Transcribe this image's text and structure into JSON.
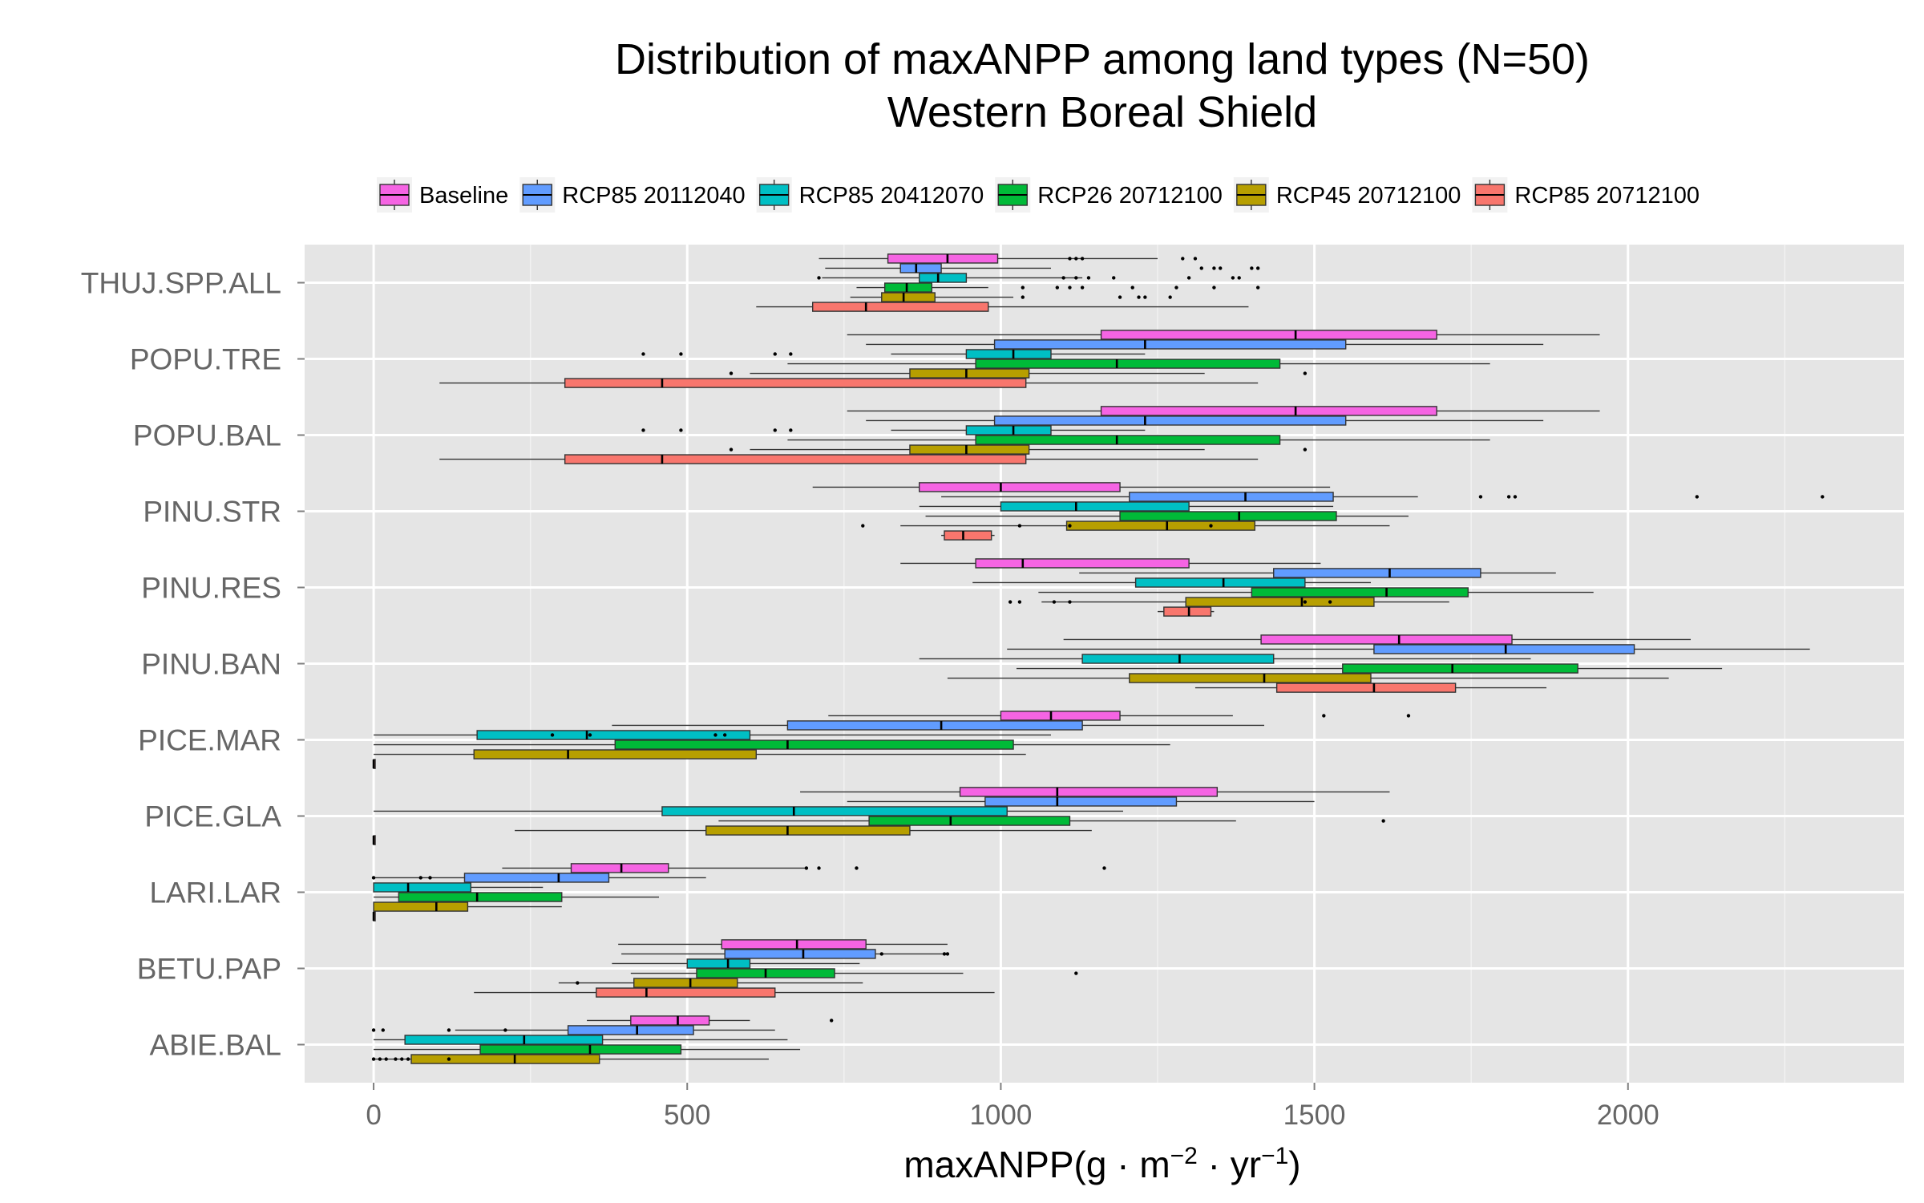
{
  "chart_data": {
    "type": "boxplot",
    "orientation": "horizontal",
    "title": "Distribution of maxANPP among land types (N=50)",
    "subtitle": "Western Boreal Shield",
    "xlabel": "maxANPP(g·m−2·yr−1)",
    "xlabel_parts": {
      "base": "maxANPP(g · m",
      "exp1": "−2",
      "mid": " · yr",
      "exp2": "−1",
      "end": ")"
    },
    "xlim": [
      -110,
      2440
    ],
    "xticks": [
      0,
      500,
      1000,
      1500,
      2000
    ],
    "xtick_labels": [
      "0",
      "500",
      "1000",
      "1500",
      "2000"
    ],
    "grid": true,
    "legend_position": "top",
    "categories": [
      "THUJ.SPP.ALL",
      "POPU.TRE",
      "POPU.BAL",
      "PINU.STR",
      "PINU.RES",
      "PINU.BAN",
      "PICE.MAR",
      "PICE.GLA",
      "LARI.LAR",
      "BETU.PAP",
      "ABIE.BAL"
    ],
    "series": [
      {
        "name": "Baseline",
        "color": "#F564E3"
      },
      {
        "name": "RCP85 20112040",
        "color": "#619CFF"
      },
      {
        "name": "RCP85 20412070",
        "color": "#00BFC4"
      },
      {
        "name": "RCP26 20712100",
        "color": "#00BA38"
      },
      {
        "name": "RCP45 20712100",
        "color": "#B79F00"
      },
      {
        "name": "RCP85 20712100",
        "color": "#F8766D"
      }
    ],
    "boxes": [
      {
        "category": "THUJ.SPP.ALL",
        "series": 0,
        "whisker_low": 710,
        "q1": 820,
        "median": 915,
        "q3": 995,
        "whisker_high": 1250,
        "outliers": [
          1110,
          1120,
          1130,
          1290,
          1310
        ]
      },
      {
        "category": "THUJ.SPP.ALL",
        "series": 1,
        "whisker_low": 720,
        "q1": 840,
        "median": 865,
        "q3": 905,
        "whisker_high": 1080,
        "outliers": [
          1320,
          1340,
          1350,
          1400,
          1410
        ]
      },
      {
        "category": "THUJ.SPP.ALL",
        "series": 2,
        "whisker_low": 715,
        "q1": 870,
        "median": 900,
        "q3": 945,
        "whisker_high": 1130,
        "outliers": [
          710,
          1100,
          1120,
          1140,
          1180,
          1300,
          1370,
          1380
        ]
      },
      {
        "category": "THUJ.SPP.ALL",
        "series": 3,
        "whisker_low": 770,
        "q1": 815,
        "median": 850,
        "q3": 890,
        "whisker_high": 980,
        "outliers": [
          1035,
          1090,
          1110,
          1130,
          1210,
          1280,
          1340,
          1410
        ]
      },
      {
        "category": "THUJ.SPP.ALL",
        "series": 4,
        "whisker_low": 760,
        "q1": 810,
        "median": 845,
        "q3": 895,
        "whisker_high": 1020,
        "outliers": [
          1035,
          1190,
          1220,
          1230,
          1270
        ]
      },
      {
        "category": "THUJ.SPP.ALL",
        "series": 5,
        "whisker_low": 610,
        "q1": 700,
        "median": 785,
        "q3": 980,
        "whisker_high": 1395,
        "outliers": []
      },
      {
        "category": "POPU.TRE",
        "series": 0,
        "whisker_low": 755,
        "q1": 1160,
        "median": 1470,
        "q3": 1695,
        "whisker_high": 1955,
        "outliers": []
      },
      {
        "category": "POPU.TRE",
        "series": 1,
        "whisker_low": 785,
        "q1": 990,
        "median": 1230,
        "q3": 1550,
        "whisker_high": 1865,
        "outliers": []
      },
      {
        "category": "POPU.TRE",
        "series": 2,
        "whisker_low": 825,
        "q1": 945,
        "median": 1020,
        "q3": 1080,
        "whisker_high": 1230,
        "outliers": [
          430,
          490,
          640,
          665
        ]
      },
      {
        "category": "POPU.TRE",
        "series": 3,
        "whisker_low": 660,
        "q1": 960,
        "median": 1185,
        "q3": 1445,
        "whisker_high": 1780,
        "outliers": []
      },
      {
        "category": "POPU.TRE",
        "series": 4,
        "whisker_low": 600,
        "q1": 855,
        "median": 945,
        "q3": 1045,
        "whisker_high": 1325,
        "outliers": [
          570,
          1485
        ]
      },
      {
        "category": "POPU.TRE",
        "series": 5,
        "whisker_low": 105,
        "q1": 305,
        "median": 460,
        "q3": 1040,
        "whisker_high": 1410,
        "outliers": []
      },
      {
        "category": "POPU.BAL",
        "series": 0,
        "whisker_low": 755,
        "q1": 1160,
        "median": 1470,
        "q3": 1695,
        "whisker_high": 1955,
        "outliers": []
      },
      {
        "category": "POPU.BAL",
        "series": 1,
        "whisker_low": 785,
        "q1": 990,
        "median": 1230,
        "q3": 1550,
        "whisker_high": 1865,
        "outliers": []
      },
      {
        "category": "POPU.BAL",
        "series": 2,
        "whisker_low": 825,
        "q1": 945,
        "median": 1020,
        "q3": 1080,
        "whisker_high": 1230,
        "outliers": [
          430,
          490,
          640,
          665
        ]
      },
      {
        "category": "POPU.BAL",
        "series": 3,
        "whisker_low": 660,
        "q1": 960,
        "median": 1185,
        "q3": 1445,
        "whisker_high": 1780,
        "outliers": []
      },
      {
        "category": "POPU.BAL",
        "series": 4,
        "whisker_low": 600,
        "q1": 855,
        "median": 945,
        "q3": 1045,
        "whisker_high": 1325,
        "outliers": [
          570,
          1485
        ]
      },
      {
        "category": "POPU.BAL",
        "series": 5,
        "whisker_low": 105,
        "q1": 305,
        "median": 460,
        "q3": 1040,
        "whisker_high": 1410,
        "outliers": []
      },
      {
        "category": "PINU.STR",
        "series": 0,
        "whisker_low": 700,
        "q1": 870,
        "median": 1000,
        "q3": 1190,
        "whisker_high": 1525,
        "outliers": []
      },
      {
        "category": "PINU.STR",
        "series": 1,
        "whisker_low": 905,
        "q1": 1205,
        "median": 1390,
        "q3": 1530,
        "whisker_high": 1665,
        "outliers": [
          1765,
          1810,
          1820,
          2110,
          2310
        ]
      },
      {
        "category": "PINU.STR",
        "series": 2,
        "whisker_low": 870,
        "q1": 1000,
        "median": 1120,
        "q3": 1300,
        "whisker_high": 1530,
        "outliers": []
      },
      {
        "category": "PINU.STR",
        "series": 3,
        "whisker_low": 880,
        "q1": 1190,
        "median": 1380,
        "q3": 1535,
        "whisker_high": 1650,
        "outliers": []
      },
      {
        "category": "PINU.STR",
        "series": 4,
        "whisker_low": 840,
        "q1": 1105,
        "median": 1265,
        "q3": 1405,
        "whisker_high": 1620,
        "outliers": [
          780,
          1030,
          1110,
          1335
        ]
      },
      {
        "category": "PINU.STR",
        "series": 5,
        "whisker_low": 905,
        "q1": 910,
        "median": 940,
        "q3": 985,
        "whisker_high": 990,
        "outliers": []
      },
      {
        "category": "PINU.RES",
        "series": 0,
        "whisker_low": 840,
        "q1": 960,
        "median": 1035,
        "q3": 1300,
        "whisker_high": 1510,
        "outliers": []
      },
      {
        "category": "PINU.RES",
        "series": 1,
        "whisker_low": 1125,
        "q1": 1435,
        "median": 1620,
        "q3": 1765,
        "whisker_high": 1885,
        "outliers": []
      },
      {
        "category": "PINU.RES",
        "series": 2,
        "whisker_low": 955,
        "q1": 1215,
        "median": 1355,
        "q3": 1485,
        "whisker_high": 1590,
        "outliers": []
      },
      {
        "category": "PINU.RES",
        "series": 3,
        "whisker_low": 1060,
        "q1": 1400,
        "median": 1615,
        "q3": 1745,
        "whisker_high": 1945,
        "outliers": []
      },
      {
        "category": "PINU.RES",
        "series": 4,
        "whisker_low": 1065,
        "q1": 1295,
        "median": 1480,
        "q3": 1595,
        "whisker_high": 1715,
        "outliers": [
          1015,
          1030,
          1085,
          1110,
          1485,
          1525
        ]
      },
      {
        "category": "PINU.RES",
        "series": 5,
        "whisker_low": 1250,
        "q1": 1260,
        "median": 1300,
        "q3": 1335,
        "whisker_high": 1340,
        "outliers": []
      },
      {
        "category": "PINU.BAN",
        "series": 0,
        "whisker_low": 1100,
        "q1": 1415,
        "median": 1635,
        "q3": 1815,
        "whisker_high": 2100,
        "outliers": []
      },
      {
        "category": "PINU.BAN",
        "series": 1,
        "whisker_low": 1010,
        "q1": 1595,
        "median": 1805,
        "q3": 2010,
        "whisker_high": 2290,
        "outliers": []
      },
      {
        "category": "PINU.BAN",
        "series": 2,
        "whisker_low": 870,
        "q1": 1130,
        "median": 1285,
        "q3": 1435,
        "whisker_high": 1845,
        "outliers": []
      },
      {
        "category": "PINU.BAN",
        "series": 3,
        "whisker_low": 1025,
        "q1": 1545,
        "median": 1720,
        "q3": 1920,
        "whisker_high": 2150,
        "outliers": []
      },
      {
        "category": "PINU.BAN",
        "series": 4,
        "whisker_low": 915,
        "q1": 1205,
        "median": 1420,
        "q3": 1590,
        "whisker_high": 2065,
        "outliers": []
      },
      {
        "category": "PINU.BAN",
        "series": 5,
        "whisker_low": 1310,
        "q1": 1440,
        "median": 1595,
        "q3": 1725,
        "whisker_high": 1870,
        "outliers": []
      },
      {
        "category": "PICE.MAR",
        "series": 0,
        "whisker_low": 725,
        "q1": 1000,
        "median": 1080,
        "q3": 1190,
        "whisker_high": 1370,
        "outliers": [
          1515,
          1650
        ]
      },
      {
        "category": "PICE.MAR",
        "series": 1,
        "whisker_low": 380,
        "q1": 660,
        "median": 905,
        "q3": 1130,
        "whisker_high": 1420,
        "outliers": []
      },
      {
        "category": "PICE.MAR",
        "series": 2,
        "whisker_low": 0,
        "q1": 165,
        "median": 340,
        "q3": 600,
        "whisker_high": 1080,
        "outliers": [
          285,
          345,
          545,
          560
        ]
      },
      {
        "category": "PICE.MAR",
        "series": 3,
        "whisker_low": 0,
        "q1": 385,
        "median": 660,
        "q3": 1020,
        "whisker_high": 1270,
        "outliers": []
      },
      {
        "category": "PICE.MAR",
        "series": 4,
        "whisker_low": 0,
        "q1": 160,
        "median": 310,
        "q3": 610,
        "whisker_high": 1040,
        "outliers": []
      },
      {
        "category": "PICE.MAR",
        "series": 5,
        "whisker_low": 0,
        "q1": 0,
        "median": 0,
        "q3": 0,
        "whisker_high": 0,
        "outliers": []
      },
      {
        "category": "PICE.GLA",
        "series": 0,
        "whisker_low": 680,
        "q1": 935,
        "median": 1090,
        "q3": 1345,
        "whisker_high": 1620,
        "outliers": []
      },
      {
        "category": "PICE.GLA",
        "series": 1,
        "whisker_low": 755,
        "q1": 975,
        "median": 1090,
        "q3": 1280,
        "whisker_high": 1500,
        "outliers": []
      },
      {
        "category": "PICE.GLA",
        "series": 2,
        "whisker_low": 0,
        "q1": 460,
        "median": 670,
        "q3": 1010,
        "whisker_high": 1195,
        "outliers": []
      },
      {
        "category": "PICE.GLA",
        "series": 3,
        "whisker_low": 550,
        "q1": 790,
        "median": 920,
        "q3": 1110,
        "whisker_high": 1375,
        "outliers": [
          1610
        ]
      },
      {
        "category": "PICE.GLA",
        "series": 4,
        "whisker_low": 225,
        "q1": 530,
        "median": 660,
        "q3": 855,
        "whisker_high": 1145,
        "outliers": []
      },
      {
        "category": "PICE.GLA",
        "series": 5,
        "whisker_low": 0,
        "q1": 0,
        "median": 0,
        "q3": 0,
        "whisker_high": 0,
        "outliers": []
      },
      {
        "category": "LARI.LAR",
        "series": 0,
        "whisker_low": 205,
        "q1": 315,
        "median": 395,
        "q3": 470,
        "whisker_high": 690,
        "outliers": [
          690,
          710,
          770,
          1165
        ]
      },
      {
        "category": "LARI.LAR",
        "series": 1,
        "whisker_low": 0,
        "q1": 145,
        "median": 295,
        "q3": 375,
        "whisker_high": 530,
        "outliers": [
          0,
          75,
          90
        ]
      },
      {
        "category": "LARI.LAR",
        "series": 2,
        "whisker_low": 0,
        "q1": 0,
        "median": 55,
        "q3": 155,
        "whisker_high": 270,
        "outliers": []
      },
      {
        "category": "LARI.LAR",
        "series": 3,
        "whisker_low": 0,
        "q1": 40,
        "median": 165,
        "q3": 300,
        "whisker_high": 455,
        "outliers": []
      },
      {
        "category": "LARI.LAR",
        "series": 4,
        "whisker_low": 0,
        "q1": 0,
        "median": 100,
        "q3": 150,
        "whisker_high": 300,
        "outliers": []
      },
      {
        "category": "LARI.LAR",
        "series": 5,
        "whisker_low": 0,
        "q1": 0,
        "median": 0,
        "q3": 0,
        "whisker_high": 0,
        "outliers": []
      },
      {
        "category": "BETU.PAP",
        "series": 0,
        "whisker_low": 390,
        "q1": 555,
        "median": 675,
        "q3": 785,
        "whisker_high": 915,
        "outliers": []
      },
      {
        "category": "BETU.PAP",
        "series": 1,
        "whisker_low": 395,
        "q1": 560,
        "median": 685,
        "q3": 800,
        "whisker_high": 915,
        "outliers": [
          810,
          910,
          915
        ]
      },
      {
        "category": "BETU.PAP",
        "series": 2,
        "whisker_low": 380,
        "q1": 500,
        "median": 565,
        "q3": 600,
        "whisker_high": 775,
        "outliers": []
      },
      {
        "category": "BETU.PAP",
        "series": 3,
        "whisker_low": 410,
        "q1": 515,
        "median": 625,
        "q3": 735,
        "whisker_high": 940,
        "outliers": [
          1120
        ]
      },
      {
        "category": "BETU.PAP",
        "series": 4,
        "whisker_low": 295,
        "q1": 415,
        "median": 505,
        "q3": 580,
        "whisker_high": 780,
        "outliers": [
          325
        ]
      },
      {
        "category": "BETU.PAP",
        "series": 5,
        "whisker_low": 160,
        "q1": 355,
        "median": 435,
        "q3": 640,
        "whisker_high": 990,
        "outliers": []
      },
      {
        "category": "ABIE.BAL",
        "series": 0,
        "whisker_low": 340,
        "q1": 410,
        "median": 485,
        "q3": 535,
        "whisker_high": 600,
        "outliers": [
          730
        ]
      },
      {
        "category": "ABIE.BAL",
        "series": 1,
        "whisker_low": 130,
        "q1": 310,
        "median": 420,
        "q3": 510,
        "whisker_high": 640,
        "outliers": [
          0,
          15,
          120,
          210
        ]
      },
      {
        "category": "ABIE.BAL",
        "series": 2,
        "whisker_low": 0,
        "q1": 50,
        "median": 240,
        "q3": 365,
        "whisker_high": 660,
        "outliers": []
      },
      {
        "category": "ABIE.BAL",
        "series": 3,
        "whisker_low": 0,
        "q1": 170,
        "median": 345,
        "q3": 490,
        "whisker_high": 680,
        "outliers": []
      },
      {
        "category": "ABIE.BAL",
        "series": 4,
        "whisker_low": 0,
        "q1": 60,
        "median": 225,
        "q3": 360,
        "whisker_high": 630,
        "outliers": [
          0,
          10,
          20,
          35,
          45,
          55,
          120
        ]
      }
    ]
  }
}
